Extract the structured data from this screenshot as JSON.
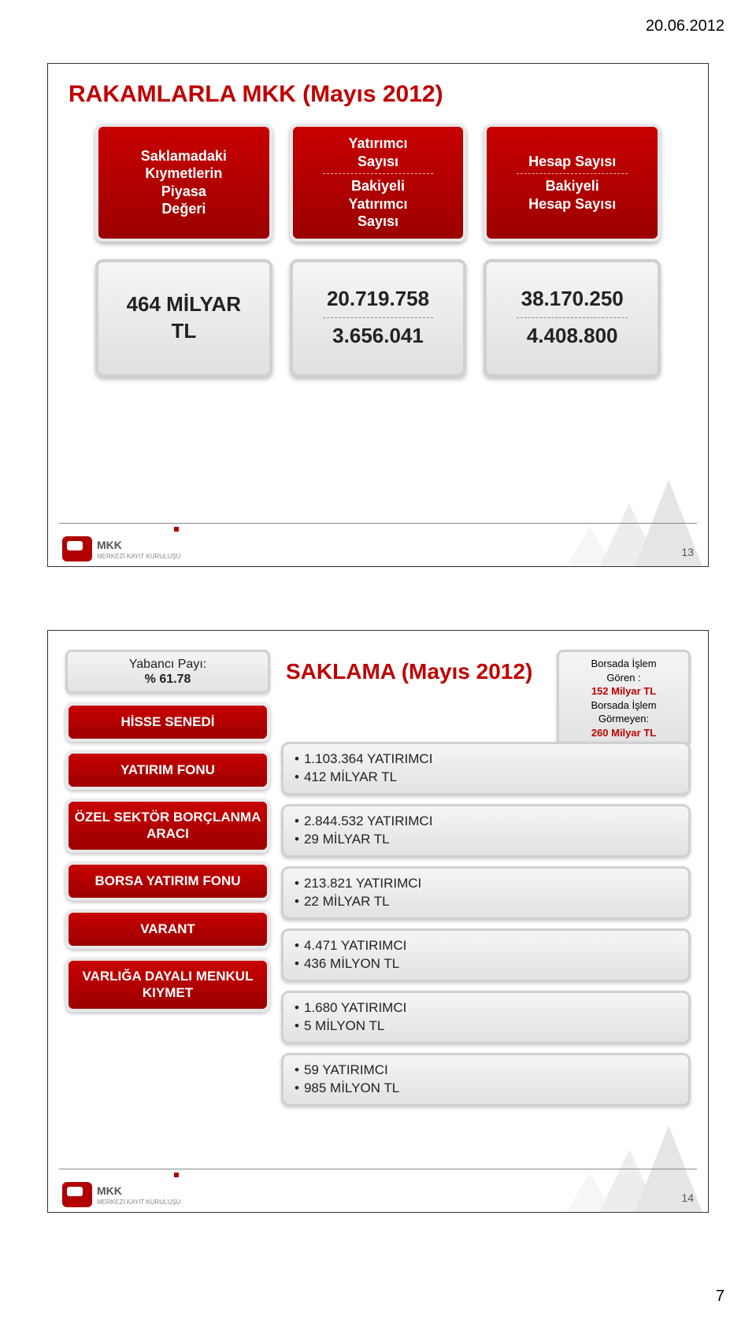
{
  "date": "20.06.2012",
  "doc_page": "7",
  "slide1": {
    "title": "RAKAMLARLA MKK (Mayıs 2012)",
    "top_cards": [
      {
        "lines": [
          "Saklamadaki",
          "Kıymetlerin",
          "Piyasa",
          "Değeri"
        ],
        "kind": "red"
      },
      {
        "top": [
          "Yatırımcı",
          "Sayısı"
        ],
        "bottom": [
          "Bakiyeli",
          "Yatırımcı",
          "Sayısı"
        ],
        "kind": "red"
      },
      {
        "top": [
          "Hesap Sayısı"
        ],
        "bottom": [
          "Bakiyeli",
          "Hesap Sayısı"
        ],
        "kind": "red"
      }
    ],
    "bottom_cards": [
      {
        "lines": [
          "464 MİLYAR",
          "TL"
        ]
      },
      {
        "top": [
          "20.719.758"
        ],
        "bottom": [
          "3.656.041"
        ]
      },
      {
        "top": [
          "38.170.250"
        ],
        "bottom": [
          "4.408.800"
        ]
      }
    ],
    "logo_main": "MKK",
    "logo_sub": "MERKEZİ KAYIT KURULUŞU",
    "page": "13"
  },
  "slide2": {
    "badge_top": {
      "l1": "Yabancı Payı:",
      "l2": "% 61.78"
    },
    "title": "SAKLAMA (Mayıs 2012)",
    "callout": {
      "l1": "Borsada İşlem",
      "l2": "Gören :",
      "hl1": "152 Milyar TL",
      "l3": "Borsada İşlem",
      "l4": "Görmeyen:",
      "hl2": "260 Milyar TL"
    },
    "rows": [
      {
        "left": "HİSSE SENEDİ",
        "r1": "1.103.364 YATIRIMCI",
        "r2": "412 MİLYAR TL"
      },
      {
        "left": "YATIRIM FONU",
        "r1": "2.844.532 YATIRIMCI",
        "r2": "29 MİLYAR TL"
      },
      {
        "left": "ÖZEL SEKTÖR BORÇLANMA ARACI",
        "r1": "213.821 YATIRIMCI",
        "r2": "22 MİLYAR TL"
      },
      {
        "left": "BORSA YATIRIM FONU",
        "r1": "4.471 YATIRIMCI",
        "r2": "436 MİLYON TL"
      },
      {
        "left": "VARANT",
        "r1": "1.680 YATIRIMCI",
        "r2": "5 MİLYON TL"
      },
      {
        "left": "VARLIĞA DAYALI MENKUL KIYMET",
        "r1": "59 YATIRIMCI",
        "r2": "985 MİLYON TL"
      }
    ],
    "page": "14"
  },
  "colors": {
    "accent_red": "#c00000",
    "card_red_top": "#c80000",
    "card_red_bottom": "#9c0000",
    "gray_top": "#f5f5f5",
    "gray_bottom": "#e0e0e0"
  }
}
